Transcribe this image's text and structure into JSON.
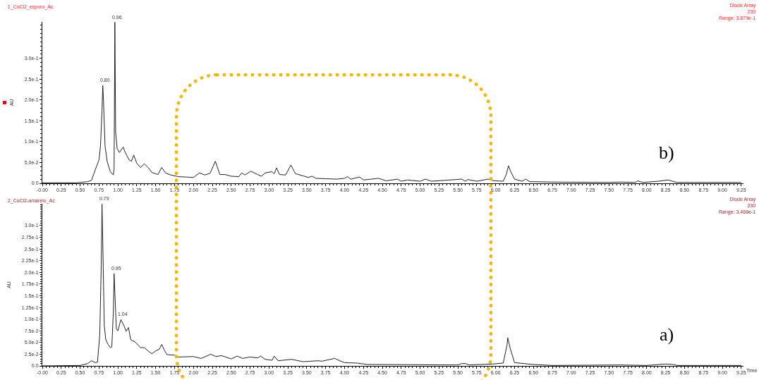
{
  "chart_data": [
    {
      "type": "line",
      "title": "1_CoCl2_esporo_Ac",
      "subtitle": "Diode Array\n230\nRange: 3.879e-1",
      "ylabel": "AU",
      "color": "#222222",
      "annotations": [
        {
          "text": "0.80",
          "x": 0.8,
          "y": 0.235
        },
        {
          "text": "0.96",
          "x": 0.96,
          "y": 0.387
        },
        "b)"
      ],
      "x": [
        0,
        0.45,
        0.5,
        0.6,
        0.65,
        0.72,
        0.75,
        0.77,
        0.79,
        0.8,
        0.81,
        0.83,
        0.86,
        0.9,
        0.94,
        0.95,
        0.96,
        0.97,
        0.99,
        1.02,
        1.07,
        1.1,
        1.15,
        1.18,
        1.21,
        1.25,
        1.3,
        1.35,
        1.4,
        1.45,
        1.53,
        1.58,
        1.63,
        1.7,
        1.8,
        1.9,
        2.0,
        2.08,
        2.15,
        2.22,
        2.29,
        2.35,
        2.42,
        2.5,
        2.6,
        2.64,
        2.68,
        2.76,
        2.85,
        2.9,
        2.95,
        3.04,
        3.07,
        3.1,
        3.14,
        3.22,
        3.29,
        3.35,
        3.45,
        3.52,
        3.57,
        3.62,
        3.75,
        3.9,
        4.0,
        4.04,
        4.08,
        4.2,
        4.25,
        4.45,
        4.55,
        4.7,
        4.75,
        4.83,
        5.0,
        5.07,
        5.15,
        5.55,
        5.6,
        5.63,
        5.75,
        5.9,
        5.98,
        6.1,
        6.14,
        6.17,
        6.2,
        6.25,
        6.35,
        6.4,
        6.45,
        6.75,
        7.5,
        7.65,
        7.85,
        7.88,
        7.95,
        8.15,
        8.28,
        8.4,
        9.25
      ],
      "values": [
        0.001,
        0.001,
        0.002,
        0.004,
        0.007,
        0.042,
        0.056,
        0.09,
        0.175,
        0.235,
        0.197,
        0.09,
        0.051,
        0.028,
        0.02,
        0.034,
        0.387,
        0.124,
        0.084,
        0.074,
        0.087,
        0.073,
        0.056,
        0.053,
        0.068,
        0.048,
        0.038,
        0.047,
        0.038,
        0.026,
        0.021,
        0.038,
        0.025,
        0.02,
        0.016,
        0.015,
        0.014,
        0.025,
        0.02,
        0.024,
        0.053,
        0.021,
        0.021,
        0.017,
        0.016,
        0.025,
        0.02,
        0.029,
        0.021,
        0.017,
        0.025,
        0.028,
        0.023,
        0.037,
        0.021,
        0.02,
        0.044,
        0.023,
        0.018,
        0.014,
        0.017,
        0.012,
        0.011,
        0.01,
        0.012,
        0.016,
        0.01,
        0.015,
        0.008,
        0.012,
        0.006,
        0.01,
        0.005,
        0.008,
        0.005,
        0.01,
        0.005,
        0.01,
        0.005,
        0.009,
        0.005,
        0.01,
        0.006,
        0.005,
        0.021,
        0.042,
        0.028,
        0.01,
        0.005,
        0.01,
        0.004,
        0.003,
        0.002,
        0.003,
        0.002,
        0.006,
        0.002,
        0.005,
        0.008,
        0.002,
        0.002
      ],
      "xlim": [
        0,
        9.28
      ],
      "ylim": [
        0,
        0.3879
      ],
      "xticks": [
        {
          "value": 0,
          "label": "-0.00"
        },
        {
          "value": 0.25,
          "label": "0.25"
        },
        {
          "value": 0.5,
          "label": "0.50"
        },
        {
          "value": 0.75,
          "label": "0.75"
        },
        {
          "value": 1,
          "label": "1.00"
        },
        {
          "value": 1.25,
          "label": "1.25"
        },
        {
          "value": 1.5,
          "label": "1.50"
        },
        {
          "value": 1.75,
          "label": "1.75"
        },
        {
          "value": 2,
          "label": "2.00"
        },
        {
          "value": 2.25,
          "label": "2.25"
        },
        {
          "value": 2.5,
          "label": "2.50"
        },
        {
          "value": 2.75,
          "label": "2.75"
        },
        {
          "value": 3,
          "label": "3.00"
        },
        {
          "value": 3.25,
          "label": "3.25"
        },
        {
          "value": 3.5,
          "label": "3.50"
        },
        {
          "value": 3.75,
          "label": "3.75"
        },
        {
          "value": 4,
          "label": "4.00"
        },
        {
          "value": 4.25,
          "label": "4.25"
        },
        {
          "value": 4.5,
          "label": "4.50"
        },
        {
          "value": 4.75,
          "label": "4.75"
        },
        {
          "value": 5,
          "label": "5.00"
        },
        {
          "value": 5.25,
          "label": "5.25"
        },
        {
          "value": 5.5,
          "label": "5.50"
        },
        {
          "value": 5.75,
          "label": "5.75"
        },
        {
          "value": 6,
          "label": "6.00"
        },
        {
          "value": 6.25,
          "label": "6.25"
        },
        {
          "value": 6.5,
          "label": "6.50"
        },
        {
          "value": 6.75,
          "label": "6.75"
        },
        {
          "value": 7,
          "label": "7.00"
        },
        {
          "value": 7.25,
          "label": "7.25"
        },
        {
          "value": 7.5,
          "label": "7.50"
        },
        {
          "value": 7.75,
          "label": "7.75"
        },
        {
          "value": 8,
          "label": "8.00"
        },
        {
          "value": 8.25,
          "label": "8.25"
        },
        {
          "value": 8.5,
          "label": "8.50"
        },
        {
          "value": 8.75,
          "label": "8.75"
        },
        {
          "value": 9,
          "label": "9.00"
        },
        {
          "value": 9.25,
          "label": "9.25"
        }
      ],
      "yticks": [
        {
          "value": 0,
          "label": "0.0"
        },
        {
          "value": 0.05,
          "label": "5.0e-2"
        },
        {
          "value": 0.1,
          "label": "1.0e-1"
        },
        {
          "value": 0.15,
          "label": "1.5e-1"
        },
        {
          "value": 0.2,
          "label": "2.0e-1"
        },
        {
          "value": 0.25,
          "label": "2.5e-1"
        },
        {
          "value": 0.3,
          "label": "3.0e-1"
        }
      ]
    },
    {
      "type": "line",
      "title": "2_CoCl2-amarelo_Ac",
      "subtitle": "Diode Array\n230\nRange: 3.466e-1",
      "ylabel": "AU",
      "xlabel": "Time",
      "color": "#222222",
      "annotations": [
        {
          "text": "0.79",
          "x": 0.79,
          "y": 0.346
        },
        {
          "text": "0.95",
          "x": 0.95,
          "y": 0.197
        },
        {
          "text": "1.04",
          "x": 1.04,
          "y": 0.099
        },
        "a)"
      ],
      "x": [
        0,
        0.5,
        0.6,
        0.65,
        0.7,
        0.73,
        0.76,
        0.78,
        0.79,
        0.8,
        0.82,
        0.84,
        0.87,
        0.9,
        0.92,
        0.94,
        0.95,
        0.96,
        0.98,
        1.0,
        1.04,
        1.08,
        1.11,
        1.14,
        1.17,
        1.23,
        1.3,
        1.35,
        1.4,
        1.45,
        1.5,
        1.55,
        1.58,
        1.62,
        1.65,
        1.75,
        1.8,
        2.0,
        2.1,
        2.23,
        2.3,
        2.37,
        2.5,
        2.58,
        2.65,
        2.75,
        2.85,
        2.89,
        2.95,
        3.04,
        3.07,
        3.12,
        3.3,
        3.45,
        3.65,
        3.7,
        3.87,
        3.95,
        4.0,
        4.17,
        4.3,
        5.5,
        5.55,
        5.6,
        5.65,
        5.95,
        6.1,
        6.15,
        6.16,
        6.19,
        6.25,
        6.5,
        6.75,
        7.65,
        8.0,
        8.25,
        8.35,
        8.4,
        9.25
      ],
      "values": [
        0,
        0.001,
        0.005,
        0.011,
        0.007,
        0.008,
        0.066,
        0.216,
        0.346,
        0.266,
        0.086,
        0.056,
        0.046,
        0.039,
        0.041,
        0.116,
        0.197,
        0.156,
        0.079,
        0.075,
        0.099,
        0.086,
        0.074,
        0.082,
        0.056,
        0.051,
        0.039,
        0.039,
        0.032,
        0.026,
        0.032,
        0.036,
        0.046,
        0.032,
        0.024,
        0.023,
        0.019,
        0.02,
        0.016,
        0.025,
        0.02,
        0.022,
        0.015,
        0.021,
        0.016,
        0.019,
        0.017,
        0.021,
        0.014,
        0.012,
        0.021,
        0.011,
        0.014,
        0.009,
        0.011,
        0.01,
        0.016,
        0.01,
        0.007,
        0.006,
        0.003,
        0.002,
        0.005,
        0.005,
        0.002,
        0.004,
        0.006,
        0.044,
        0.06,
        0.039,
        0.007,
        0.003,
        0.001,
        0.002,
        0.001,
        0.004,
        0.003,
        0.001,
        0.001
      ],
      "xlim": [
        0,
        9.28
      ],
      "ylim": [
        0,
        0.3466
      ],
      "xticks": [
        {
          "value": 0,
          "label": "-0.00"
        },
        {
          "value": 0.25,
          "label": "0.25"
        },
        {
          "value": 0.5,
          "label": "0.50"
        },
        {
          "value": 0.75,
          "label": "0.75"
        },
        {
          "value": 1,
          "label": "1.00"
        },
        {
          "value": 1.25,
          "label": "1.25"
        },
        {
          "value": 1.5,
          "label": "1.50"
        },
        {
          "value": 1.75,
          "label": "1.75"
        },
        {
          "value": 2,
          "label": "2.00"
        },
        {
          "value": 2.25,
          "label": "2.25"
        },
        {
          "value": 2.5,
          "label": "2.50"
        },
        {
          "value": 2.75,
          "label": "2.75"
        },
        {
          "value": 3,
          "label": "3.00"
        },
        {
          "value": 3.25,
          "label": "3.25"
        },
        {
          "value": 3.5,
          "label": "3.50"
        },
        {
          "value": 3.75,
          "label": "3.75"
        },
        {
          "value": 4,
          "label": "4.00"
        },
        {
          "value": 4.25,
          "label": "4.25"
        },
        {
          "value": 4.5,
          "label": "4.50"
        },
        {
          "value": 4.75,
          "label": "4.75"
        },
        {
          "value": 5,
          "label": "5.00"
        },
        {
          "value": 5.25,
          "label": "5.25"
        },
        {
          "value": 5.5,
          "label": "5.50"
        },
        {
          "value": 5.75,
          "label": "5.75"
        },
        {
          "value": 6,
          "label": "6.00"
        },
        {
          "value": 6.25,
          "label": "6.25"
        },
        {
          "value": 6.5,
          "label": "6.50"
        },
        {
          "value": 6.75,
          "label": "6.75"
        },
        {
          "value": 7,
          "label": "7.00"
        },
        {
          "value": 7.25,
          "label": "7.25"
        },
        {
          "value": 7.5,
          "label": "7.50"
        },
        {
          "value": 7.75,
          "label": "7.75"
        },
        {
          "value": 8,
          "label": "8.00"
        },
        {
          "value": 8.25,
          "label": "8.25"
        },
        {
          "value": 8.5,
          "label": "8.50"
        },
        {
          "value": 8.75,
          "label": "8.75"
        },
        {
          "value": 9,
          "label": "9.00"
        },
        {
          "value": 9.25,
          "label": "9.25"
        }
      ],
      "yticks": [
        {
          "value": 0,
          "label": "0.0"
        },
        {
          "value": 0.025,
          "label": "2.5e-2"
        },
        {
          "value": 0.05,
          "label": "5.0e-2"
        },
        {
          "value": 0.075,
          "label": "7.5e-2"
        },
        {
          "value": 0.1,
          "label": "1.0e-1"
        },
        {
          "value": 0.125,
          "label": "1.25e-1"
        },
        {
          "value": 0.15,
          "label": "1.5e-1"
        },
        {
          "value": 0.175,
          "label": "1.75e-1"
        },
        {
          "value": 0.2,
          "label": "2.0e-1"
        },
        {
          "value": 0.225,
          "label": "2.25e-1"
        },
        {
          "value": 0.25,
          "label": "2.5e-1"
        },
        {
          "value": 0.275,
          "label": "2.75e-1"
        },
        {
          "value": 0.3,
          "label": "3.0e-1"
        }
      ]
    }
  ]
}
